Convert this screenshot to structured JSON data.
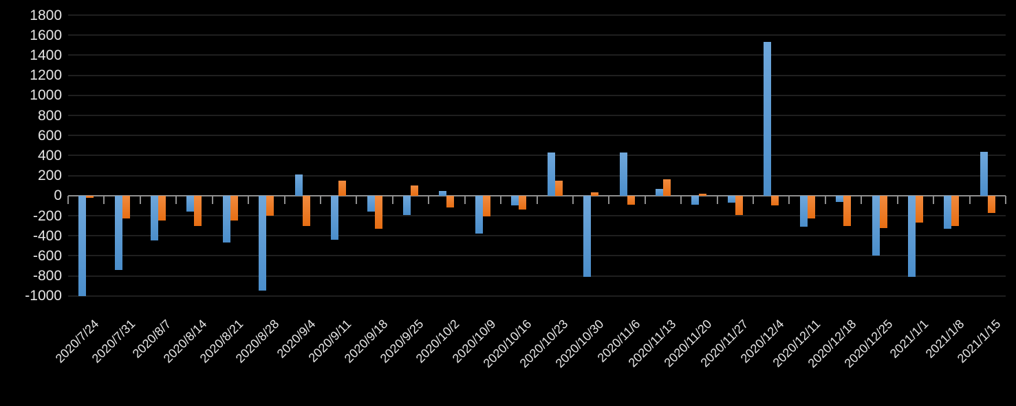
{
  "chart_data": {
    "type": "bar",
    "title": "",
    "xlabel": "",
    "ylabel": "",
    "legend_position": "none",
    "grid": true,
    "background_color": "#000000",
    "gridline_color": "#1f1f1f",
    "axis_line_color": "#8f8f8f",
    "text_color": "#e6e6e6",
    "ylim": [
      -1000,
      1800
    ],
    "y_tick_step": 200,
    "y_tick_labels": [
      "1800",
      "1600",
      "1400",
      "1200",
      "1000",
      "800",
      "600",
      "400",
      "200",
      "0",
      "-200",
      "-400",
      "-600",
      "-800",
      "-1000"
    ],
    "categories": [
      "2020/7/24",
      "2020/7/31",
      "2020/8/7",
      "2020/8/14",
      "2020/8/21",
      "2020/8/28",
      "2020/9/4",
      "2020/9/11",
      "2020/9/18",
      "2020/9/25",
      "2020/10/2",
      "2020/10/9",
      "2020/10/16",
      "2020/10/23",
      "2020/10/30",
      "2020/11/6",
      "2020/11/13",
      "2020/11/20",
      "2020/11/27",
      "2020/12/4",
      "2020/12/11",
      "2020/12/18",
      "2020/12/25",
      "2021/1/1",
      "2021/1/8",
      "2021/1/15"
    ],
    "series": [
      {
        "name": "series-blue",
        "color": "#5B9BD5",
        "values": [
          -1000,
          -740,
          -450,
          -160,
          -470,
          -950,
          210,
          -440,
          -160,
          -190,
          50,
          -380,
          -100,
          430,
          -810,
          430,
          70,
          -90,
          -70,
          1530,
          -310,
          -60,
          -600,
          -810,
          -330,
          440
        ]
      },
      {
        "name": "series-orange",
        "color": "#ED7D31",
        "values": [
          -20,
          -230,
          -250,
          -300,
          -250,
          -200,
          -300,
          150,
          -330,
          100,
          -120,
          -210,
          -140,
          150,
          30,
          -90,
          160,
          20,
          -190,
          -100,
          -230,
          -300,
          -320,
          -270,
          -300,
          -170
        ]
      }
    ]
  }
}
